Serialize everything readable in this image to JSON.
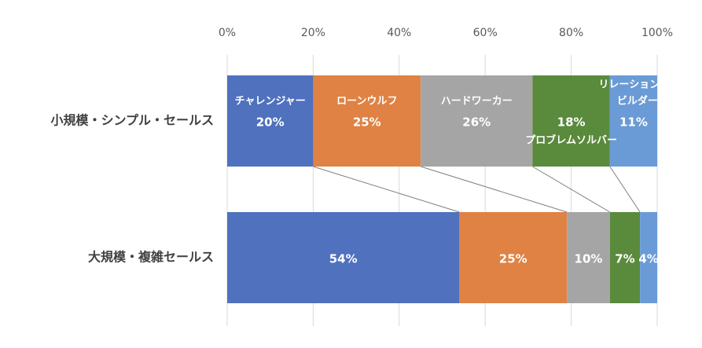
{
  "chart_data": {
    "type": "bar",
    "orientation": "horizontal",
    "stacked": "percent",
    "xlim": [
      0,
      100
    ],
    "x_ticks": [
      "0%",
      "20%",
      "40%",
      "60%",
      "80%",
      "100%"
    ],
    "grid": true,
    "categories": [
      "小規模・シンプル・セールス",
      "大規模・複雑セールス"
    ],
    "series": [
      {
        "name": "チャレンジャー",
        "color": "#4f71be",
        "values": [
          20,
          54
        ],
        "labels": [
          "20%",
          "54%"
        ]
      },
      {
        "name": "ローンウルフ",
        "color": "#df8244",
        "values": [
          25,
          25
        ],
        "labels": [
          "25%",
          "25%"
        ]
      },
      {
        "name": "ハードワーカー",
        "color": "#a5a5a5",
        "values": [
          26,
          10
        ],
        "labels": [
          "26%",
          "10%"
        ]
      },
      {
        "name": "プロブレムソルバー",
        "color": "#5a8a3c",
        "values": [
          18,
          7
        ],
        "labels": [
          "18%",
          "7%"
        ]
      },
      {
        "name": "リレーションシップビルダー",
        "name_lines": [
          "リレーションシップ",
          "ビルダー"
        ],
        "color": "#6a9bd6",
        "values": [
          11,
          4
        ],
        "labels": [
          "11%",
          "4%"
        ]
      }
    ]
  }
}
